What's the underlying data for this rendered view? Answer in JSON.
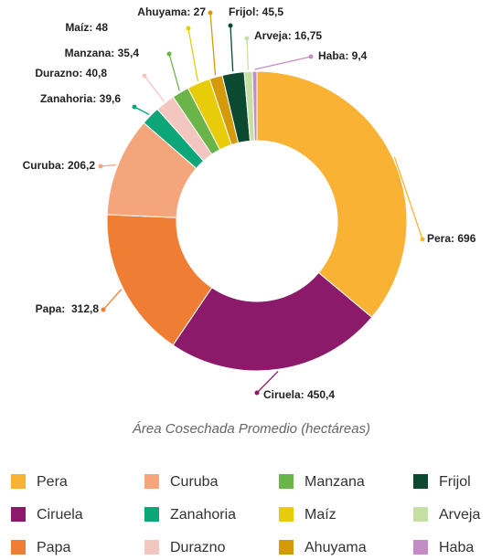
{
  "chart_data": {
    "type": "donut",
    "title": "Área Cosechada Promedio (hectáreas)",
    "categories": [
      "Pera",
      "Ciruela",
      "Papa",
      "Curuba",
      "Zanahoria",
      "Durazno",
      "Manzana",
      "Maíz",
      "Ahuyama",
      "Frijol",
      "Arveja",
      "Haba"
    ],
    "values": [
      696,
      450.4,
      312.8,
      206.2,
      39.6,
      40.8,
      35.4,
      48,
      27,
      45.5,
      16.75,
      9.4
    ],
    "value_labels": [
      "Pera: 696",
      "Ciruela: 450,4",
      "Papa:  312,8",
      "Curuba: 206,2",
      "Zanahoria: 39,6",
      "Durazno: 40,8",
      "Manzana: 35,4",
      "Maíz: 48",
      "Ahuyama: 27",
      "Frijol: 45,5",
      "Arveja: 16,75",
      "Haba: 9,4"
    ],
    "colors": [
      "#f9b233",
      "#8b1a6b",
      "#ef7d34",
      "#f4a57c",
      "#0ca678",
      "#f4c6c0",
      "#6ab54a",
      "#e8cc0a",
      "#d49a0a",
      "#0b4a30",
      "#c6e0a4",
      "#c58bc4"
    ],
    "legend": "bottom"
  }
}
